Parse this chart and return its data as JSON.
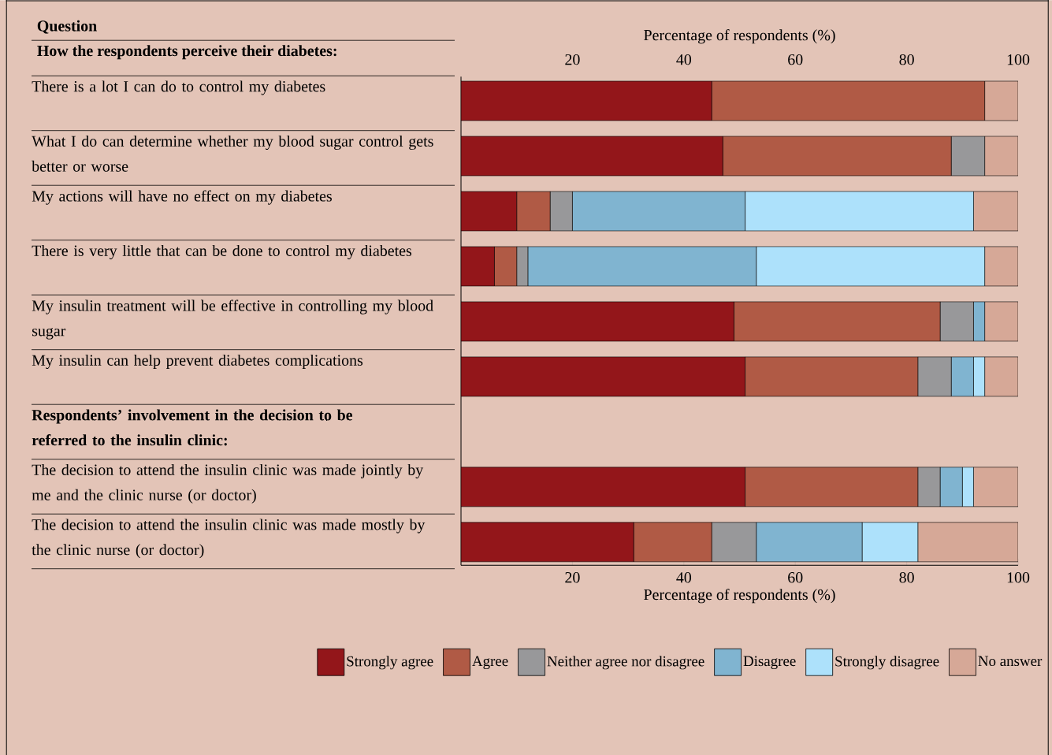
{
  "chart_data": {
    "type": "bar",
    "orientation": "horizontal",
    "stacked": true,
    "xlabel": "Percentage of respondents (%)",
    "x2label": "Percentage of respondents (%)",
    "annotations": [
      "Question",
      "How the respondents perceive their diabetes:",
      "Respondents’ involvement in the decision to be referred to the insulin clinic:"
    ],
    "categories": [
      "There is a lot I can do to control my diabetes",
      "What I do can determine whether my blood sugar control gets better or worse",
      "My actions will have no effect on my diabetes",
      "There is very little that can be done to control my diabetes",
      "My insulin treatment will be effective in controlling my blood sugar",
      "My insulin can help prevent diabetes complications",
      null,
      "The decision to attend the insulin clinic was made jointly by me and the clinic nurse (or doctor)",
      "The decision to attend the insulin clinic was made mostly by the clinic nurse (or doctor)"
    ],
    "series": [
      {
        "name": "Strongly agree",
        "color": "#93161a",
        "values": [
          45,
          47,
          10,
          6,
          49,
          51,
          null,
          51,
          31
        ]
      },
      {
        "name": "Agree",
        "color": "#b05a45",
        "values": [
          49,
          41,
          6,
          4,
          37,
          31,
          null,
          31,
          14
        ]
      },
      {
        "name": "Neither agree nor disagree",
        "color": "#98989a",
        "values": [
          0,
          6,
          4,
          2,
          6,
          6,
          null,
          4,
          8
        ]
      },
      {
        "name": "Disagree",
        "color": "#80b4d0",
        "values": [
          0,
          0,
          31,
          41,
          2,
          4,
          null,
          4,
          19
        ]
      },
      {
        "name": "Strongly disagree",
        "color": "#ade1fb",
        "values": [
          0,
          0,
          41,
          41,
          0,
          2,
          null,
          2,
          10
        ]
      },
      {
        "name": "No answer",
        "color": "#d6a897",
        "values": [
          6,
          6,
          8,
          6,
          6,
          6,
          null,
          8,
          18
        ]
      }
    ],
    "xlim": [
      0,
      100
    ],
    "xticks": [
      20,
      40,
      60,
      80,
      100
    ],
    "x2lim": [
      0,
      100
    ],
    "x2ticks": [
      20,
      40,
      60,
      80,
      100
    ],
    "legend": "bottom"
  }
}
